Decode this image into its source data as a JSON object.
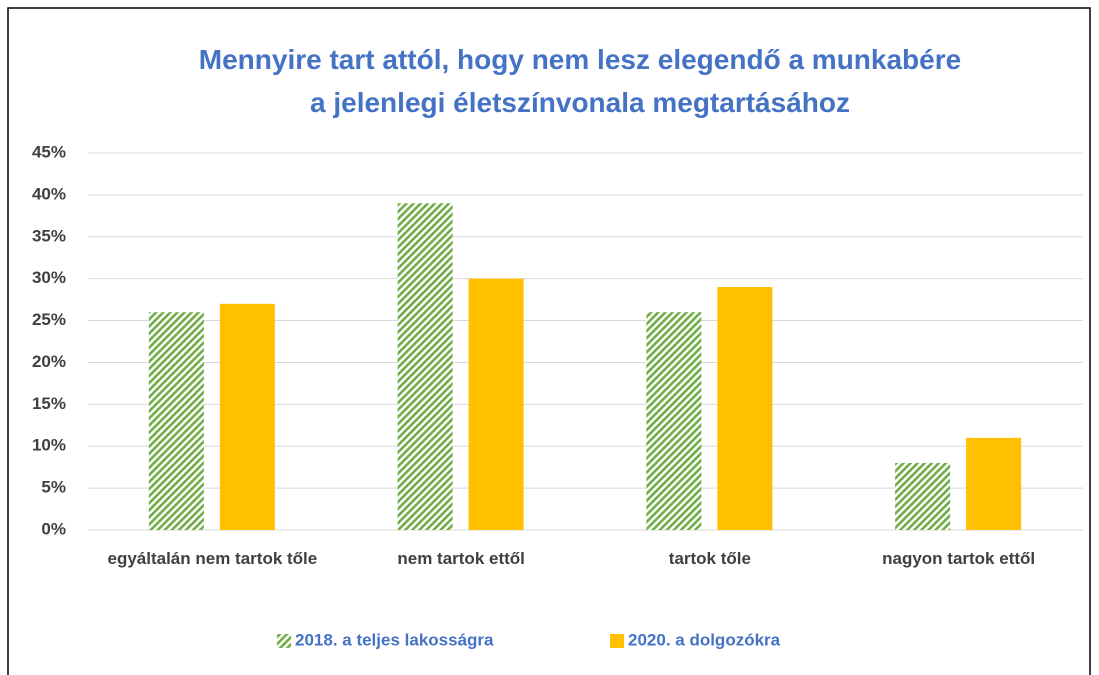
{
  "chart_data": {
    "type": "bar",
    "title": "Mennyire tart attól, hogy nem lesz elegendő a munkabére a jelenlegi életszínvonala megtartásához",
    "categories": [
      "egyáltalán nem tartok tőle",
      "nem tartok ettől",
      "tartok tőle",
      "nagyon tartok ettől"
    ],
    "series": [
      {
        "name": "2018. a teljes lakosságra",
        "color": "#70AD47",
        "pattern": "diagonal",
        "values": [
          26,
          39,
          26,
          8
        ]
      },
      {
        "name": "2020. a dolgozókra",
        "color": "#FFC000",
        "values": [
          27,
          30,
          29,
          11
        ]
      }
    ],
    "ylim": [
      0,
      45
    ],
    "yticks": [
      {
        "value": 0,
        "label": "0%"
      },
      {
        "value": 5,
        "label": "5%"
      },
      {
        "value": 10,
        "label": "10%"
      },
      {
        "value": 15,
        "label": "15%"
      },
      {
        "value": 20,
        "label": "20%"
      },
      {
        "value": 25,
        "label": "25%"
      },
      {
        "value": 30,
        "label": "30%"
      },
      {
        "value": 35,
        "label": "35%"
      },
      {
        "value": 40,
        "label": "40%"
      },
      {
        "value": 45,
        "label": "45%"
      }
    ],
    "grid": true,
    "legend": "bottom"
  }
}
